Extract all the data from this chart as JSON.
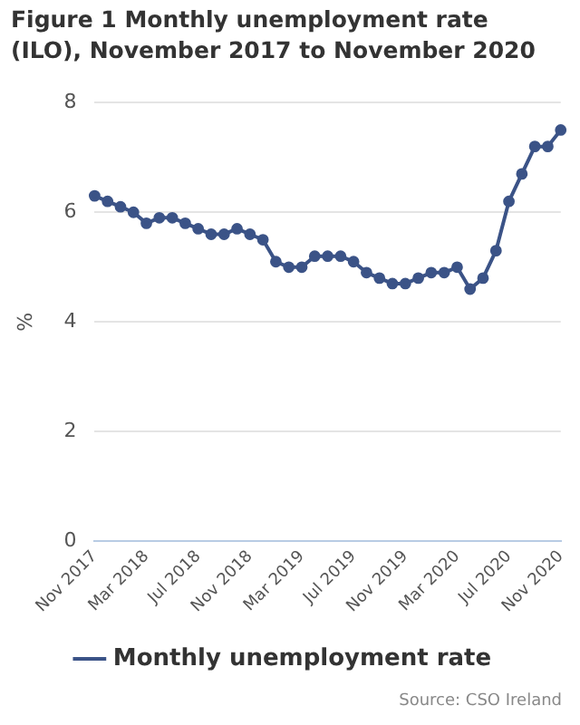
{
  "chart_data": {
    "type": "line",
    "title": "Figure 1 Monthly unemployment rate (ILO), November 2017 to November 2020",
    "ylabel": "%",
    "categories": [
      "Nov 2017",
      null,
      null,
      null,
      "Mar 2018",
      null,
      null,
      null,
      "Jul 2018",
      null,
      null,
      null,
      "Nov 2018",
      null,
      null,
      null,
      "Mar 2019",
      null,
      null,
      null,
      "Jul 2019",
      null,
      null,
      null,
      "Nov 2019",
      null,
      null,
      null,
      "Mar 2020",
      null,
      null,
      null,
      "Jul 2020",
      null,
      null,
      null,
      "Nov 2020"
    ],
    "series": [
      {
        "name": "Monthly unemployment rate",
        "color": "#3b5387",
        "values": [
          6.3,
          6.2,
          6.1,
          6.0,
          5.8,
          5.9,
          5.9,
          5.8,
          5.7,
          5.6,
          5.6,
          5.7,
          5.6,
          5.5,
          5.1,
          5.0,
          5.0,
          5.2,
          5.2,
          5.2,
          5.1,
          4.9,
          4.8,
          4.7,
          4.7,
          4.8,
          4.9,
          4.9,
          5.0,
          4.6,
          4.8,
          5.3,
          6.2,
          6.7,
          7.2,
          7.2,
          7.5
        ]
      }
    ],
    "ylim": [
      0,
      8
    ],
    "yticks": [
      0,
      2,
      4,
      6,
      8
    ],
    "grid": "y",
    "legend": "bottom",
    "marker": "circle",
    "line_style": "solid",
    "annotations": [
      "Source: CSO Ireland"
    ]
  }
}
